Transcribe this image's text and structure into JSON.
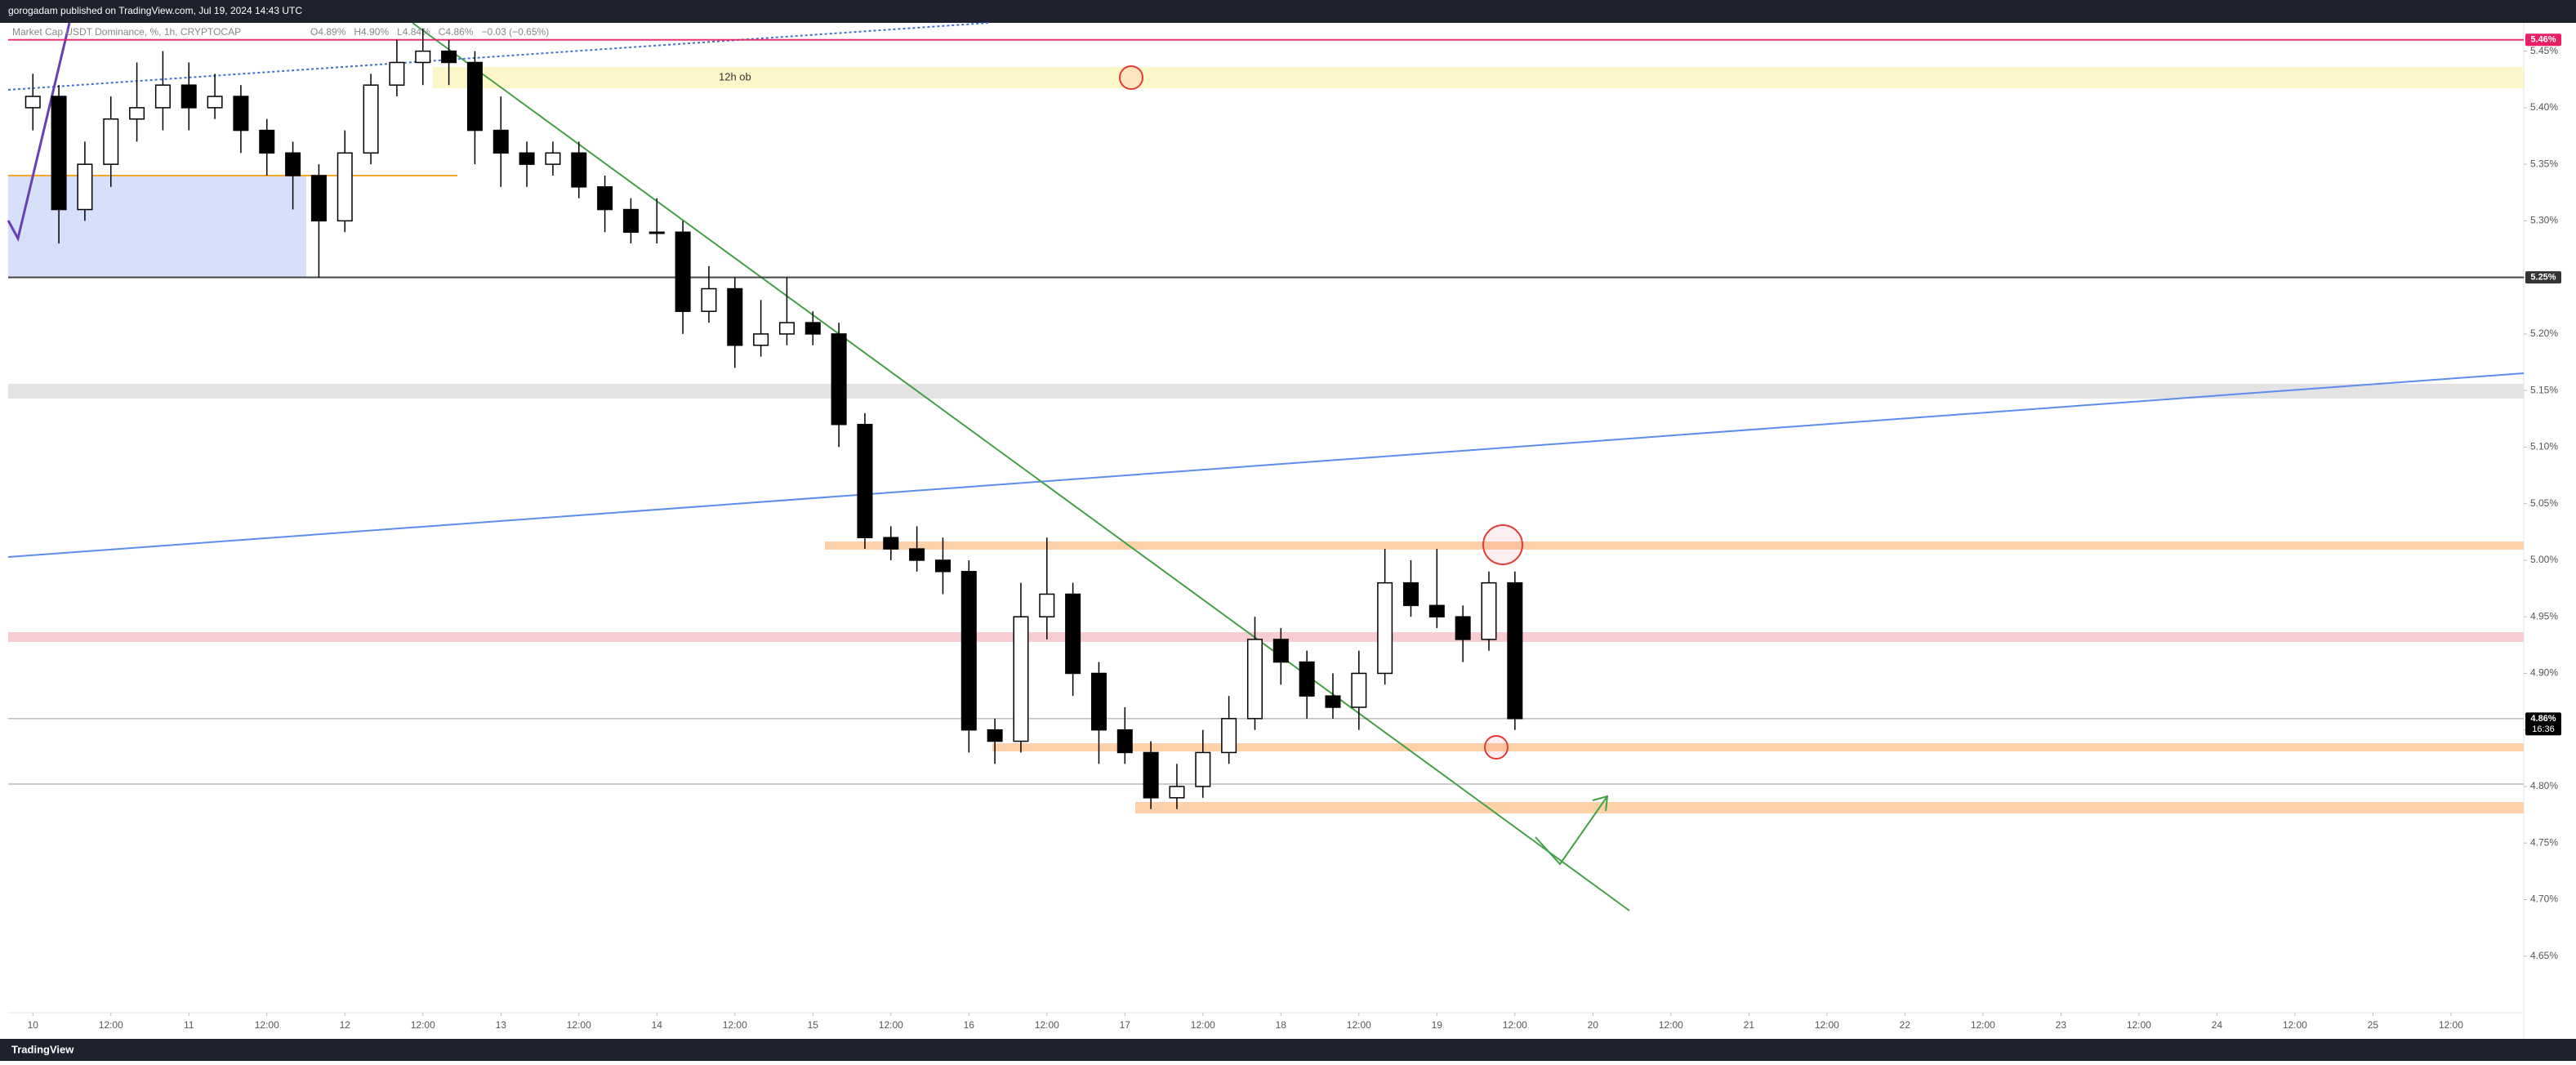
{
  "header": {
    "published": "gorogadam published on TradingView.com, Jul 19, 2024 14:43 UTC"
  },
  "footer": {
    "brand": "TradingView"
  },
  "chart_data": {
    "type": "candlestick",
    "title": "Market Cap USDT Dominance, %, 1h, CRYPTOCAP",
    "ohlc_legend": [
      "O4.89%",
      "H4.90%",
      "L4.84%",
      "C4.86%",
      "−0.03 (−0.65%)"
    ],
    "annotation": "12h ob",
    "x": [
      0,
      4,
      8,
      12,
      16,
      20,
      24,
      28,
      32,
      36,
      40,
      44,
      48,
      52,
      56,
      60,
      64,
      68,
      72,
      76,
      80,
      84,
      88,
      92,
      96,
      100,
      104,
      108,
      112,
      116,
      120,
      124,
      128,
      132,
      136,
      140,
      144,
      148,
      152,
      156,
      160,
      164,
      168,
      172,
      176,
      180,
      184,
      188,
      192,
      196,
      200,
      204,
      208,
      212,
      216,
      220,
      224,
      228
    ],
    "open": [
      5.4,
      5.41,
      5.31,
      5.35,
      5.39,
      5.4,
      5.42,
      5.4,
      5.41,
      5.38,
      5.36,
      5.34,
      5.3,
      5.36,
      5.42,
      5.44,
      5.45,
      5.44,
      5.38,
      5.36,
      5.35,
      5.36,
      5.33,
      5.31,
      5.29,
      5.29,
      5.22,
      5.24,
      5.19,
      5.2,
      5.21,
      5.2,
      5.12,
      5.02,
      5.01,
      5.0,
      4.99,
      4.85,
      4.84,
      4.95,
      4.97,
      4.9,
      4.85,
      4.83,
      4.79,
      4.8,
      4.83,
      4.86,
      4.93,
      4.91,
      4.88,
      4.87,
      4.9,
      4.98,
      4.96,
      4.95,
      4.93,
      4.98
    ],
    "high": [
      5.43,
      5.42,
      5.37,
      5.41,
      5.44,
      5.45,
      5.44,
      5.43,
      5.42,
      5.39,
      5.37,
      5.35,
      5.38,
      5.43,
      5.46,
      5.47,
      5.46,
      5.45,
      5.41,
      5.37,
      5.37,
      5.37,
      5.34,
      5.32,
      5.32,
      5.3,
      5.26,
      5.25,
      5.23,
      5.25,
      5.22,
      5.21,
      5.13,
      5.03,
      5.03,
      5.02,
      5.0,
      4.86,
      4.98,
      5.02,
      4.98,
      4.91,
      4.87,
      4.84,
      4.82,
      4.85,
      4.88,
      4.95,
      4.94,
      4.92,
      4.9,
      4.92,
      5.01,
      5.0,
      5.01,
      4.96,
      4.99,
      4.99
    ],
    "low": [
      5.38,
      5.28,
      5.3,
      5.33,
      5.37,
      5.38,
      5.38,
      5.39,
      5.36,
      5.34,
      5.31,
      5.25,
      5.29,
      5.35,
      5.41,
      5.42,
      5.42,
      5.35,
      5.33,
      5.33,
      5.34,
      5.32,
      5.29,
      5.28,
      5.28,
      5.2,
      5.21,
      5.17,
      5.18,
      5.19,
      5.19,
      5.1,
      5.01,
      5.0,
      4.99,
      4.97,
      4.83,
      4.82,
      4.83,
      4.93,
      4.88,
      4.82,
      4.82,
      4.78,
      4.78,
      4.79,
      4.82,
      4.85,
      4.89,
      4.86,
      4.86,
      4.85,
      4.89,
      4.95,
      4.94,
      4.91,
      4.92,
      4.85
    ],
    "close": [
      5.41,
      5.31,
      5.35,
      5.39,
      5.4,
      5.42,
      5.4,
      5.41,
      5.38,
      5.36,
      5.34,
      5.3,
      5.36,
      5.42,
      5.44,
      5.45,
      5.44,
      5.38,
      5.36,
      5.35,
      5.36,
      5.33,
      5.31,
      5.29,
      5.29,
      5.22,
      5.24,
      5.19,
      5.2,
      5.21,
      5.2,
      5.12,
      5.02,
      5.01,
      5.0,
      4.99,
      4.85,
      4.84,
      4.95,
      4.97,
      4.9,
      4.85,
      4.83,
      4.79,
      4.8,
      4.83,
      4.86,
      4.93,
      4.91,
      4.88,
      4.87,
      4.9,
      4.98,
      4.96,
      4.95,
      4.93,
      4.98,
      4.86
    ],
    "xlim": [
      -3.8,
      383.2
    ],
    "xticks": [
      {
        "value": 0,
        "label": "10"
      },
      {
        "value": 12,
        "label": "12:00"
      },
      {
        "value": 24,
        "label": "11"
      },
      {
        "value": 36,
        "label": "12:00"
      },
      {
        "value": 48,
        "label": "12"
      },
      {
        "value": 60,
        "label": "12:00"
      },
      {
        "value": 72,
        "label": "13"
      },
      {
        "value": 84,
        "label": "12:00"
      },
      {
        "value": 96,
        "label": "14"
      },
      {
        "value": 108,
        "label": "12:00"
      },
      {
        "value": 120,
        "label": "15"
      },
      {
        "value": 132,
        "label": "12:00"
      },
      {
        "value": 144,
        "label": "16"
      },
      {
        "value": 156,
        "label": "12:00"
      },
      {
        "value": 168,
        "label": "17"
      },
      {
        "value": 180,
        "label": "12:00"
      },
      {
        "value": 192,
        "label": "18"
      },
      {
        "value": 204,
        "label": "12:00"
      },
      {
        "value": 216,
        "label": "19"
      },
      {
        "value": 228,
        "label": "12:00"
      },
      {
        "value": 240,
        "label": "20"
      },
      {
        "value": 252,
        "label": "12:00"
      },
      {
        "value": 264,
        "label": "21"
      },
      {
        "value": 276,
        "label": "12:00"
      },
      {
        "value": 288,
        "label": "22"
      },
      {
        "value": 300,
        "label": "12:00"
      },
      {
        "value": 312,
        "label": "23"
      },
      {
        "value": 324,
        "label": "12:00"
      },
      {
        "value": 336,
        "label": "24"
      },
      {
        "value": 348,
        "label": "12:00"
      },
      {
        "value": 360,
        "label": "25"
      },
      {
        "value": 372,
        "label": "12:00"
      }
    ],
    "ylim": [
      4.6,
      5.475
    ],
    "yticks": [
      {
        "value": 4.65,
        "label": "4.65%"
      },
      {
        "value": 4.7,
        "label": "4.70%"
      },
      {
        "value": 4.75,
        "label": "4.75%"
      },
      {
        "value": 4.8,
        "label": "4.80%"
      },
      {
        "value": 4.85,
        "label": "4.85%"
      },
      {
        "value": 4.9,
        "label": "4.90%"
      },
      {
        "value": 4.95,
        "label": "4.95%"
      },
      {
        "value": 5.0,
        "label": "5.00%"
      },
      {
        "value": 5.05,
        "label": "5.05%"
      },
      {
        "value": 5.1,
        "label": "5.10%"
      },
      {
        "value": 5.15,
        "label": "5.15%"
      },
      {
        "value": 5.2,
        "label": "5.20%"
      },
      {
        "value": 5.25,
        "label": "5.25%"
      },
      {
        "value": 5.3,
        "label": "5.30%"
      },
      {
        "value": 5.35,
        "label": "5.35%"
      },
      {
        "value": 5.4,
        "label": "5.40%"
      },
      {
        "value": 5.45,
        "label": "5.45%"
      }
    ],
    "price_tags": [
      {
        "value": 5.46,
        "label": "5.46%",
        "color": "#e91e63"
      },
      {
        "value": 5.25,
        "label": "5.25%",
        "color": "#333333"
      },
      {
        "value": 4.86,
        "label": "4.86%",
        "color": "#000000",
        "countdown": "16:36"
      }
    ],
    "up_color": "#ffffff",
    "down_color": "#000000"
  }
}
